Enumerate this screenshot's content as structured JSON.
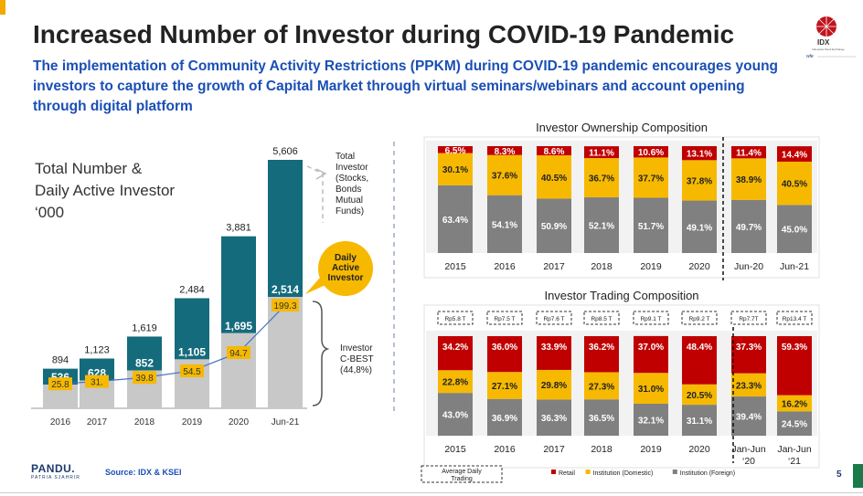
{
  "header": {
    "title": "Increased Number of Investor during COVID-19 Pandemic",
    "subtitle": "The implementation of Community Activity Restrictions (PPKM) during COVID-19 pandemic encourages young investors to capture the growth of Capital Market through virtual seminars/webinars and account opening through digital platform"
  },
  "logo": {
    "text": "IDX",
    "sub": "Indonesia Stock Exchange",
    "wfe": "wfe"
  },
  "left_heading": [
    "Total Number &",
    "Daily Active Investor",
    "‘000"
  ],
  "annotations": {
    "total_investor": [
      "Total",
      "Investor",
      "(Stocks,",
      "Bonds",
      "Mutual",
      "Funds)"
    ],
    "daily_active": [
      "Daily",
      "Active",
      "Investor"
    ],
    "cbest": [
      "Investor",
      "C-BEST",
      "(44,8%)"
    ]
  },
  "footer": {
    "brand": "PANDU.",
    "brand_sub": "PATRIA SJAHRIR",
    "source": "Source: IDX & KSEI",
    "page": "5"
  },
  "chart_data": [
    {
      "type": "bar",
      "title": "",
      "categories": [
        "2016",
        "2017",
        "2018",
        "2019",
        "2020",
        "Jun-21"
      ],
      "series": [
        {
          "name": "",
          "values": [
            894,
            1123,
            1619,
            2484,
            3881,
            5606
          ],
          "labels": [
            "894",
            "1,123",
            "1,619",
            "2,484",
            "3,881",
            "5,606"
          ]
        },
        {
          "name": "",
          "values": [
            536,
            628,
            852,
            1105,
            1695,
            2514
          ],
          "labels": [
            "536",
            "628",
            "852",
            "1,105",
            "1,695",
            "2,514"
          ]
        },
        {
          "name": "",
          "values": [
            25.8,
            31,
            39.8,
            54.5,
            94.7,
            199.3
          ],
          "labels": [
            "25.8",
            "31.",
            "39.8",
            "54.5",
            "94.7",
            "199.3"
          ]
        }
      ],
      "colors": {
        "total": "#146b7c",
        "cbest": "#c8c8c8",
        "daily": "#f6b900"
      }
    },
    {
      "type": "bar",
      "title": "Investor Ownership Composition",
      "stacked": true,
      "categories": [
        "2015",
        "2016",
        "2017",
        "2018",
        "2019",
        "2020",
        "Jun-20",
        "Jun-21"
      ],
      "series": [
        {
          "name": "",
          "values": [
            63.4,
            54.1,
            50.9,
            52.1,
            51.7,
            49.1,
            49.7,
            45.0
          ],
          "labels": [
            "63.4%",
            "54.1%",
            "50.9%",
            "52.1%",
            "51.7%",
            "49.1%",
            "49.7%",
            "45.0%"
          ]
        },
        {
          "name": "",
          "values": [
            30.1,
            37.6,
            40.5,
            36.7,
            37.7,
            37.8,
            38.9,
            40.5
          ],
          "labels": [
            "30.1%",
            "37.6%",
            "40.5%",
            "36.7%",
            "37.7%",
            "37.8%",
            "38.9%",
            "40.5%"
          ]
        },
        {
          "name": "",
          "values": [
            6.5,
            8.3,
            8.6,
            11.1,
            10.6,
            13.1,
            11.4,
            14.4
          ],
          "labels": [
            "6.5%",
            "8.3%",
            "8.6%",
            "11.1%",
            "10.6%",
            "13.1%",
            "11.4%",
            "14.4%"
          ]
        }
      ],
      "colors": [
        "#808080",
        "#f6b900",
        "#c00000"
      ]
    },
    {
      "type": "bar",
      "title": "Investor Trading Composition",
      "stacked": true,
      "categories": [
        "2015",
        "2016",
        "2017",
        "2018",
        "2019",
        "2020",
        "Jan-Jun '20",
        "Jan-Jun '21"
      ],
      "category_lines": [
        [
          "2015"
        ],
        [
          "2016"
        ],
        [
          "2017"
        ],
        [
          "2018"
        ],
        [
          "2019"
        ],
        [
          "2020"
        ],
        [
          "Jan-Jun",
          "‘20"
        ],
        [
          "Jan-Jun",
          "‘21"
        ]
      ],
      "avg_daily_trading": [
        "Rp5.8 T",
        "Rp7.5 T",
        "Rp7.6 T",
        "Rp8.5 T",
        "Rp9.1 T",
        "Rp9.2 T",
        "Rp7.7T",
        "Rp13.4 T"
      ],
      "avg_daily_label": "Average Daily Trading",
      "series": [
        {
          "name": "Institution (Foreign)",
          "values": [
            43.0,
            36.9,
            36.3,
            36.5,
            32.1,
            31.1,
            39.4,
            24.5
          ],
          "labels": [
            "43.0%",
            "36.9%",
            "36.3%",
            "36.5%",
            "32.1%",
            "31.1%",
            "39.4%",
            "24.5%"
          ]
        },
        {
          "name": "Institution (Domestic)",
          "values": [
            22.8,
            27.1,
            29.8,
            27.3,
            31.0,
            20.5,
            23.3,
            16.2
          ],
          "labels": [
            "22.8%",
            "27.1%",
            "29.8%",
            "27.3%",
            "31.0%",
            "20.5%",
            "23.3%",
            "16.2%"
          ]
        },
        {
          "name": "Retail",
          "values": [
            34.2,
            36.0,
            33.9,
            36.2,
            37.0,
            48.4,
            37.3,
            59.3
          ],
          "labels": [
            "34.2%",
            "36.0%",
            "33.9%",
            "36.2%",
            "37.0%",
            "48.4%",
            "37.3%",
            "59.3%"
          ]
        }
      ],
      "legend": [
        "Retail",
        "Institution (Domestic)",
        "Institution (Foreign)"
      ],
      "colors": [
        "#808080",
        "#f6b900",
        "#c00000"
      ]
    }
  ]
}
